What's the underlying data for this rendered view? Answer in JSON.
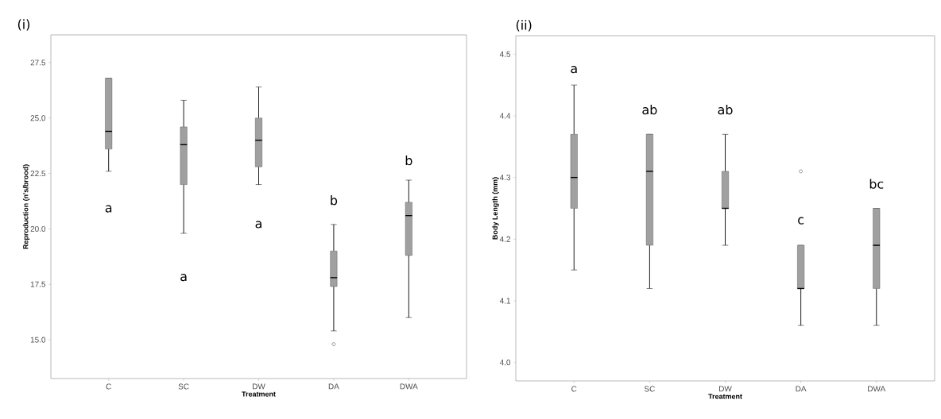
{
  "chart_data": [
    {
      "type": "box",
      "title": "(i)",
      "xlabel": "Treatment",
      "ylabel": "Reproduction (n's/brood)",
      "categories": [
        "C",
        "SC",
        "DW",
        "DA",
        "DWA"
      ],
      "boxes": [
        {
          "low": 22.6,
          "q1": 23.6,
          "median": 24.4,
          "q3": 26.8,
          "high": 26.8
        },
        {
          "low": 19.8,
          "q1": 22.0,
          "median": 23.8,
          "q3": 24.6,
          "high": 25.8
        },
        {
          "low": 22.0,
          "q1": 22.8,
          "median": 24.0,
          "q3": 25.0,
          "high": 26.4
        },
        {
          "low": 15.4,
          "q1": 17.4,
          "median": 17.8,
          "q3": 19.0,
          "high": 20.2,
          "outliers": [
            14.8
          ]
        },
        {
          "low": 16.0,
          "q1": 18.8,
          "median": 20.6,
          "q3": 21.2,
          "high": 22.2
        }
      ],
      "color": "#a0a0a0",
      "marker": "circle",
      "ylim": [
        13.25,
        28.75
      ],
      "yticks": [
        {
          "value": 15,
          "label": "15.0"
        },
        {
          "value": 17.5,
          "label": "17.5"
        },
        {
          "value": 20,
          "label": "20.0"
        },
        {
          "value": 22.5,
          "label": "22.5"
        },
        {
          "value": 25,
          "label": "25.0"
        },
        {
          "value": 27.5,
          "label": "27.5"
        }
      ],
      "grid": false,
      "annotations": [
        "a",
        "a",
        "a",
        "b",
        "b"
      ]
    },
    {
      "type": "box",
      "title": "(ii)",
      "xlabel": "Treatment",
      "ylabel": "Body Length (mm)",
      "categories": [
        "C",
        "SC",
        "DW",
        "DA",
        "DWA"
      ],
      "boxes": [
        {
          "low": 4.15,
          "q1": 4.25,
          "median": 4.3,
          "q3": 4.37,
          "high": 4.45
        },
        {
          "low": 4.12,
          "q1": 4.19,
          "median": 4.31,
          "q3": 4.37,
          "high": 4.37
        },
        {
          "low": 4.19,
          "q1": 4.25,
          "median": 4.25,
          "q3": 4.31,
          "high": 4.37
        },
        {
          "low": 4.06,
          "q1": 4.12,
          "median": 4.12,
          "q3": 4.19,
          "high": 4.19,
          "outliers": [
            4.31
          ]
        },
        {
          "low": 4.06,
          "q1": 4.12,
          "median": 4.19,
          "q3": 4.25,
          "high": 4.25
        }
      ],
      "color": "#a0a0a0",
      "marker": "circle",
      "ylim": [
        3.97,
        4.53
      ],
      "yticks": [
        {
          "value": 4.0,
          "label": "4.0"
        },
        {
          "value": 4.1,
          "label": "4.1"
        },
        {
          "value": 4.2,
          "label": "4.2"
        },
        {
          "value": 4.3,
          "label": "4.3"
        },
        {
          "value": 4.4,
          "label": "4.4"
        },
        {
          "value": 4.5,
          "label": "4.5"
        }
      ],
      "grid": false,
      "annotations": [
        "a",
        "ab",
        "ab",
        "c",
        "bc"
      ]
    }
  ]
}
